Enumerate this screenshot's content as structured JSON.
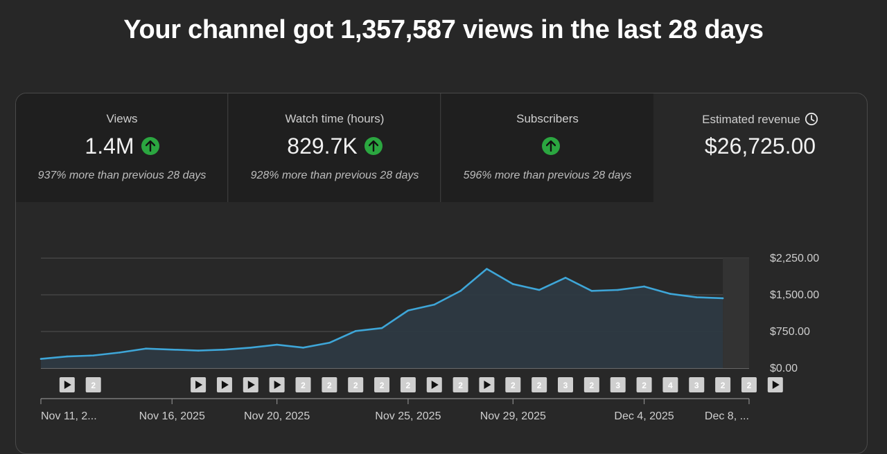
{
  "headline": "Your channel got 1,357,587 views in the last 28 days",
  "tabs": [
    {
      "label": "Views",
      "value": "1.4M",
      "trend": "up",
      "note": "937% more than previous 28 days",
      "selected": false
    },
    {
      "label": "Watch time (hours)",
      "value": "829.7K",
      "trend": "up",
      "note": "928% more than previous 28 days",
      "selected": false
    },
    {
      "label": "Subscribers",
      "value": "",
      "trend": "up",
      "note": "596% more than previous 28 days",
      "selected": false
    },
    {
      "label": "Estimated revenue",
      "value": "$26,725.00",
      "trend": "",
      "note": "",
      "selected": true,
      "icon": "clock-icon"
    }
  ],
  "colors": {
    "line": "#3ea6d8",
    "fill": "#2e3a44",
    "trend_up": "#2ba640",
    "marker": "#cfcfcf"
  },
  "chart_data": {
    "type": "area",
    "title": "",
    "series": [
      {
        "values": [
          190,
          240,
          260,
          320,
          400,
          380,
          360,
          380,
          420,
          480,
          420,
          520,
          760,
          820,
          1180,
          1300,
          1580,
          2030,
          1720,
          1600,
          1850,
          1580,
          1600,
          1670,
          1520,
          1450,
          1430
        ]
      }
    ],
    "y_ticks": [
      "$2,250.00",
      "$1,500.00",
      "$750.00",
      "$0.00"
    ],
    "ylim": [
      0,
      2250
    ],
    "x_ticks": [
      {
        "label": "Nov 11, 2...",
        "index": 0
      },
      {
        "label": "Nov 16, 2025",
        "index": 5
      },
      {
        "label": "Nov 20, 2025",
        "index": 9
      },
      {
        "label": "Nov 25, 2025",
        "index": 14
      },
      {
        "label": "Nov 29, 2025",
        "index": 18
      },
      {
        "label": "Dec 4, 2025",
        "index": 23
      },
      {
        "label": "Dec 8, ...",
        "index": 27
      }
    ],
    "markers": [
      {
        "index": 1,
        "type": "play"
      },
      {
        "index": 2,
        "type": "count",
        "label": "2"
      },
      {
        "index": 6,
        "type": "play"
      },
      {
        "index": 7,
        "type": "play"
      },
      {
        "index": 8,
        "type": "play"
      },
      {
        "index": 9,
        "type": "play"
      },
      {
        "index": 10,
        "type": "count",
        "label": "2"
      },
      {
        "index": 11,
        "type": "count",
        "label": "2"
      },
      {
        "index": 12,
        "type": "count",
        "label": "2"
      },
      {
        "index": 13,
        "type": "count",
        "label": "2"
      },
      {
        "index": 14,
        "type": "count",
        "label": "2"
      },
      {
        "index": 15,
        "type": "play"
      },
      {
        "index": 16,
        "type": "count",
        "label": "2"
      },
      {
        "index": 17,
        "type": "play"
      },
      {
        "index": 18,
        "type": "count",
        "label": "2"
      },
      {
        "index": 19,
        "type": "count",
        "label": "2"
      },
      {
        "index": 20,
        "type": "count",
        "label": "3"
      },
      {
        "index": 21,
        "type": "count",
        "label": "2"
      },
      {
        "index": 22,
        "type": "count",
        "label": "3"
      },
      {
        "index": 23,
        "type": "count",
        "label": "2"
      },
      {
        "index": 24,
        "type": "count",
        "label": "4"
      },
      {
        "index": 25,
        "type": "count",
        "label": "3"
      },
      {
        "index": 26,
        "type": "count",
        "label": "2"
      },
      {
        "index": 27,
        "type": "count",
        "label": "2"
      },
      {
        "index": 28,
        "type": "play"
      }
    ],
    "grid": true,
    "partial_last_day": true
  }
}
